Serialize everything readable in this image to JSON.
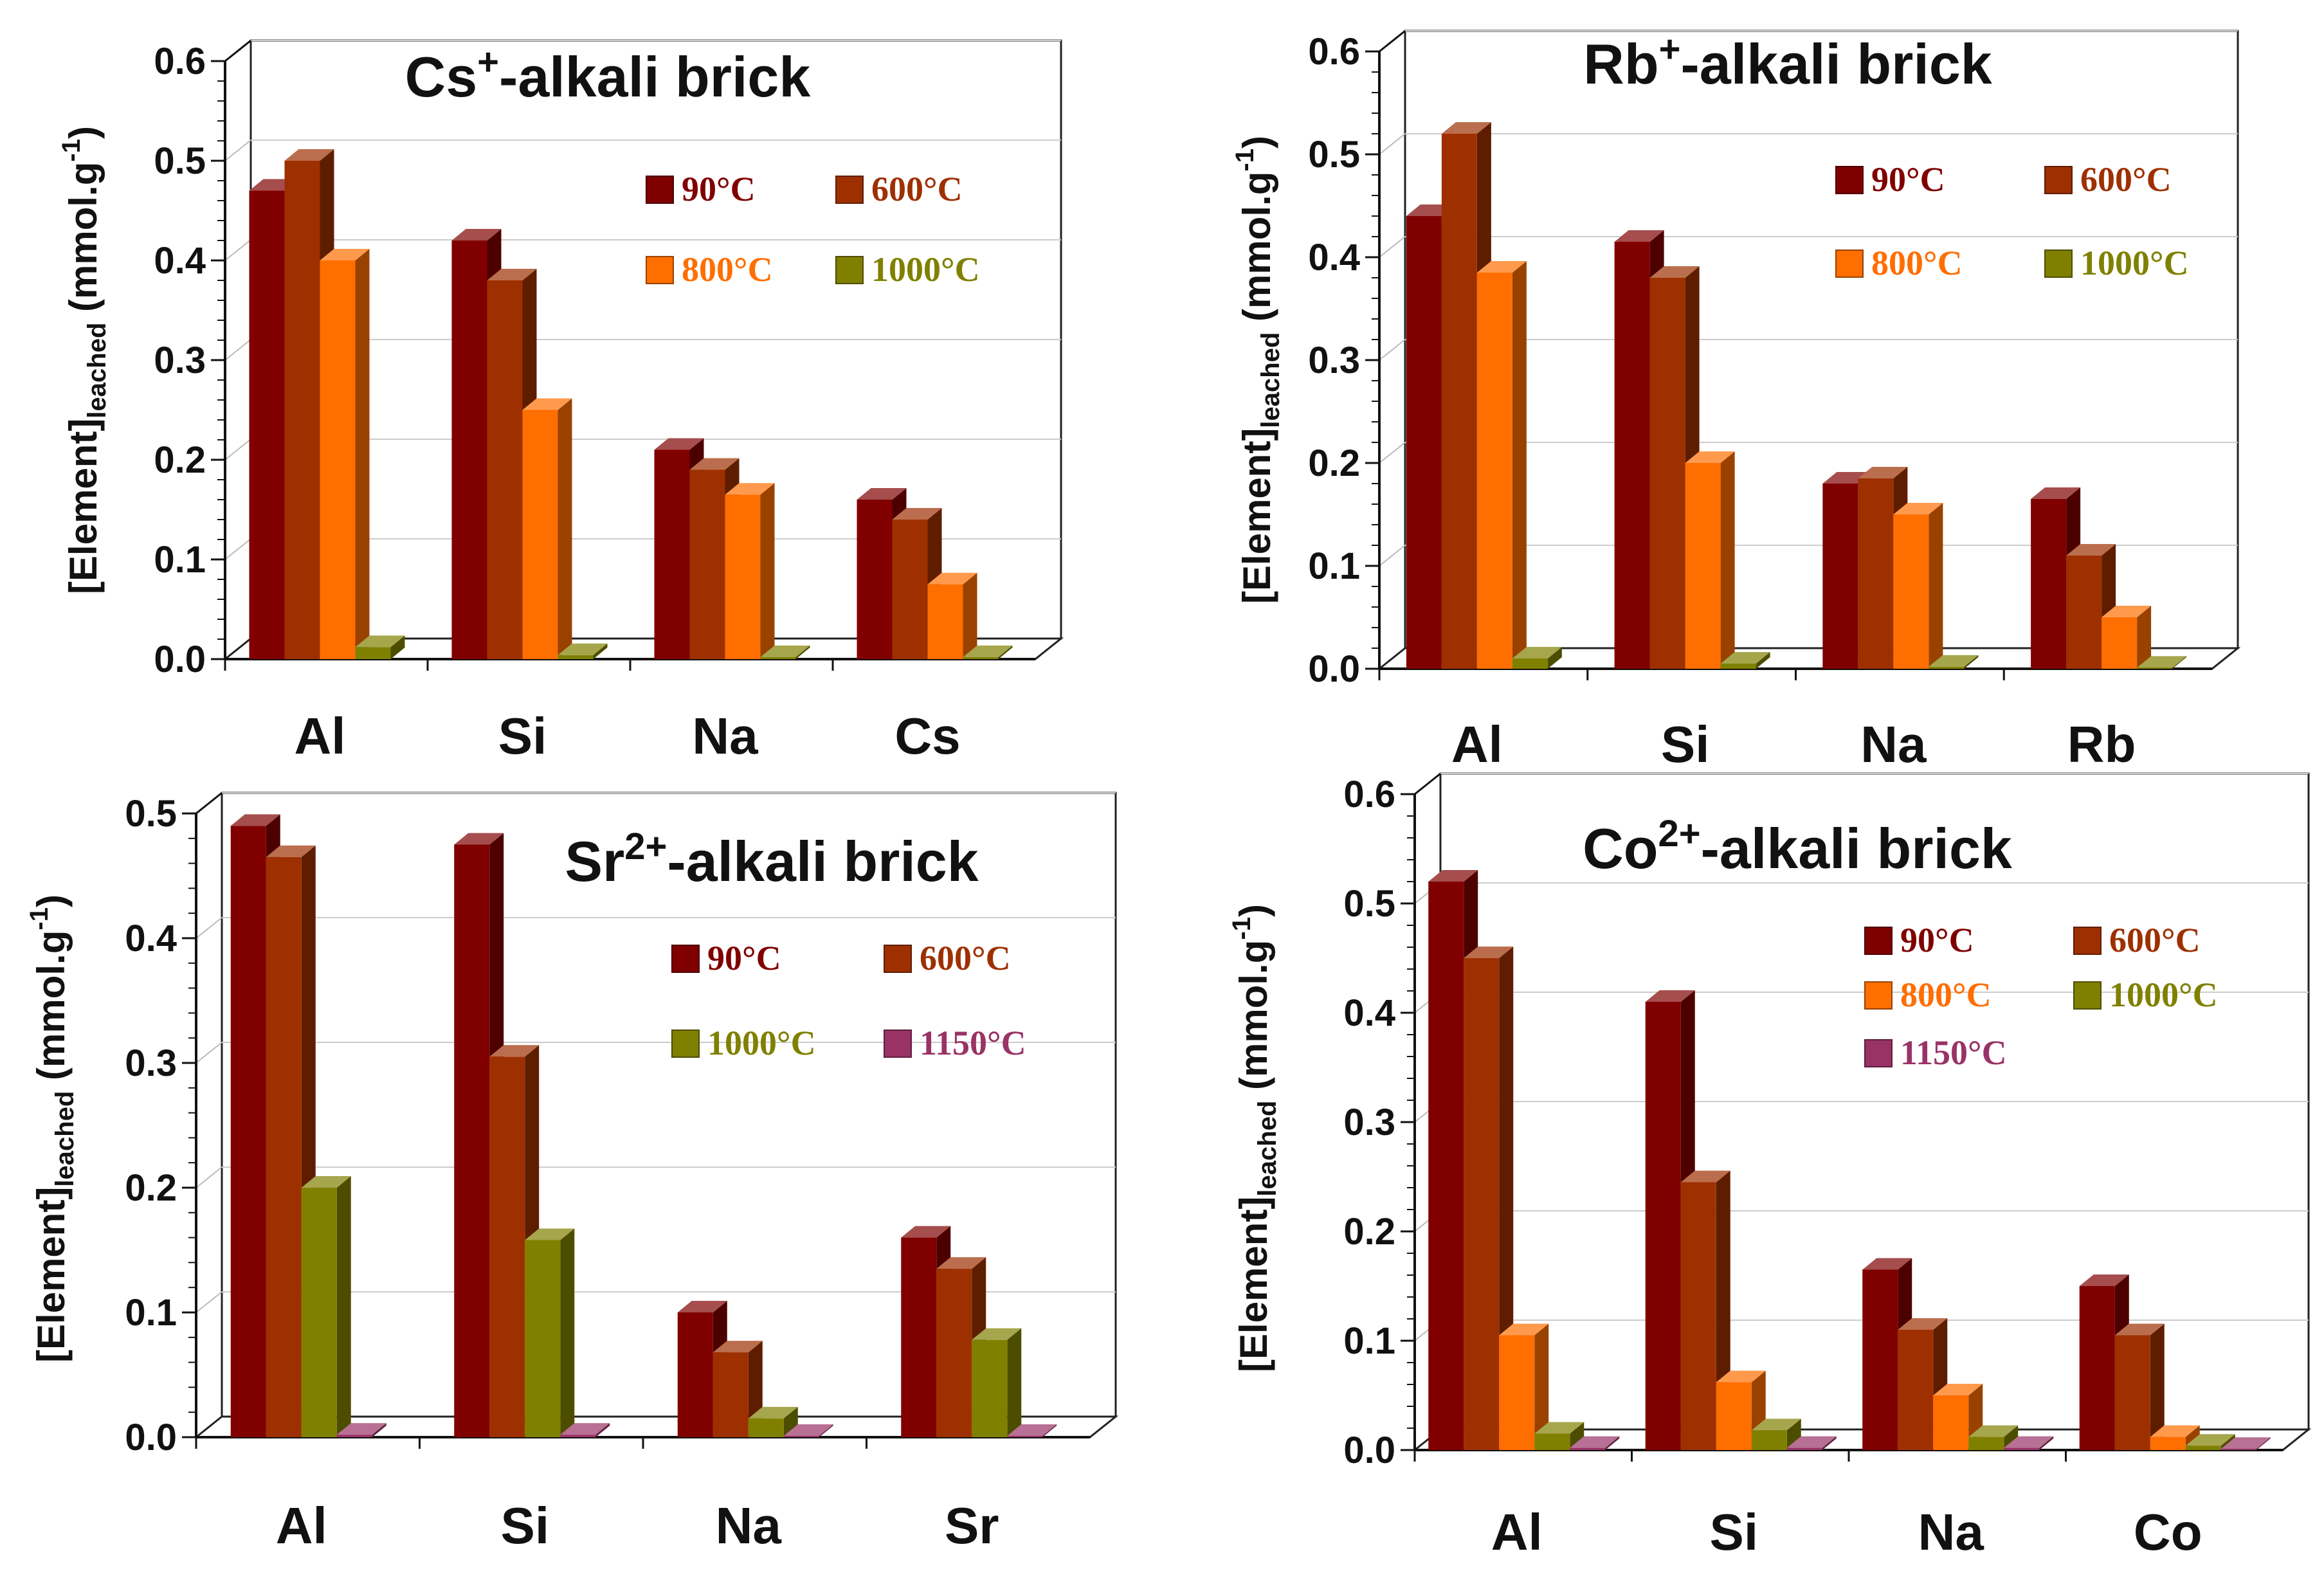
{
  "chart_data": [
    {
      "type": "bar",
      "title": "Cs",
      "title_sup": "+",
      "title_suffix": "-alkali brick",
      "ylabel_main": "[Element]",
      "ylabel_sub": "leached",
      "ylabel_unit_open": " (mmol.g",
      "ylabel_unit_sup": "-1",
      "ylabel_unit_close": ")",
      "ylim": [
        0,
        0.6
      ],
      "yticks": [
        "0.0",
        "0.1",
        "0.2",
        "0.3",
        "0.4",
        "0.5",
        "0.6"
      ],
      "categories": [
        "Al",
        "Si",
        "Na",
        "Cs"
      ],
      "series": [
        {
          "name": "90°C",
          "color": "#800000",
          "values": [
            0.47,
            0.42,
            0.21,
            0.16
          ]
        },
        {
          "name": "600°C",
          "color": "#9e3000",
          "values": [
            0.5,
            0.38,
            0.19,
            0.14
          ]
        },
        {
          "name": "800°C",
          "color": "#ff6e00",
          "values": [
            0.4,
            0.25,
            0.165,
            0.075
          ]
        },
        {
          "name": "1000°C",
          "color": "#808000",
          "values": [
            0.012,
            0.004,
            0.002,
            0.002
          ]
        }
      ]
    },
    {
      "type": "bar",
      "title": "Rb",
      "title_sup": "+",
      "title_suffix": "-alkali brick",
      "ylabel_main": "[Element]",
      "ylabel_sub": "leached",
      "ylabel_unit_open": " (mmol.g",
      "ylabel_unit_sup": "-1",
      "ylabel_unit_close": ")",
      "ylim": [
        0,
        0.6
      ],
      "yticks": [
        "0.0",
        "0.1",
        "0.2",
        "0.3",
        "0.4",
        "0.5",
        "0.6"
      ],
      "categories": [
        "Al",
        "Si",
        "Na",
        "Rb"
      ],
      "series": [
        {
          "name": "90°C",
          "color": "#800000",
          "values": [
            0.44,
            0.415,
            0.18,
            0.165
          ]
        },
        {
          "name": "600°C",
          "color": "#9e3000",
          "values": [
            0.52,
            0.38,
            0.185,
            0.11
          ]
        },
        {
          "name": "800°C",
          "color": "#ff6e00",
          "values": [
            0.385,
            0.2,
            0.15,
            0.05
          ]
        },
        {
          "name": "1000°C",
          "color": "#808000",
          "values": [
            0.01,
            0.005,
            0.002,
            0.001
          ]
        }
      ]
    },
    {
      "type": "bar",
      "title": "Sr",
      "title_sup": "2+",
      "title_suffix": "-alkali brick",
      "ylabel_main": "[Element]",
      "ylabel_sub": "leached",
      "ylabel_unit_open": " (mmol.g",
      "ylabel_unit_sup": "-1",
      "ylabel_unit_close": ")",
      "ylim": [
        0,
        0.5
      ],
      "yticks": [
        "0.0",
        "0.1",
        "0.2",
        "0.3",
        "0.4",
        "0.5"
      ],
      "categories": [
        "Al",
        "Si",
        "Na",
        "Sr"
      ],
      "series": [
        {
          "name": "90°C",
          "color": "#800000",
          "values": [
            0.49,
            0.475,
            0.1,
            0.16
          ]
        },
        {
          "name": "600°C",
          "color": "#9e3000",
          "values": [
            0.465,
            0.305,
            0.068,
            0.135
          ]
        },
        {
          "name": "1000°C",
          "color": "#808000",
          "values": [
            0.2,
            0.158,
            0.015,
            0.078
          ]
        },
        {
          "name": "1150°C",
          "color": "#993366",
          "values": [
            0.002,
            0.002,
            0.001,
            0.001
          ]
        }
      ]
    },
    {
      "type": "bar",
      "title": "Co",
      "title_sup": "2+",
      "title_suffix": "-alkali brick",
      "ylabel_main": "[Element]",
      "ylabel_sub": "leached",
      "ylabel_unit_open": " (mmol.g",
      "ylabel_unit_sup": "-1",
      "ylabel_unit_close": ")",
      "ylim": [
        0,
        0.6
      ],
      "yticks": [
        "0.0",
        "0.1",
        "0.2",
        "0.3",
        "0.4",
        "0.5",
        "0.6"
      ],
      "categories": [
        "Al",
        "Si",
        "Na",
        "Co"
      ],
      "series": [
        {
          "name": "90°C",
          "color": "#800000",
          "values": [
            0.52,
            0.41,
            0.165,
            0.15
          ]
        },
        {
          "name": "600°C",
          "color": "#9e3000",
          "values": [
            0.45,
            0.245,
            0.11,
            0.105
          ]
        },
        {
          "name": "800°C",
          "color": "#ff6e00",
          "values": [
            0.105,
            0.062,
            0.05,
            0.012
          ]
        },
        {
          "name": "1000°C",
          "color": "#808000",
          "values": [
            0.015,
            0.018,
            0.012,
            0.004
          ]
        },
        {
          "name": "1150°C",
          "color": "#993366",
          "values": [
            0.002,
            0.002,
            0.002,
            0.001
          ]
        }
      ]
    }
  ]
}
